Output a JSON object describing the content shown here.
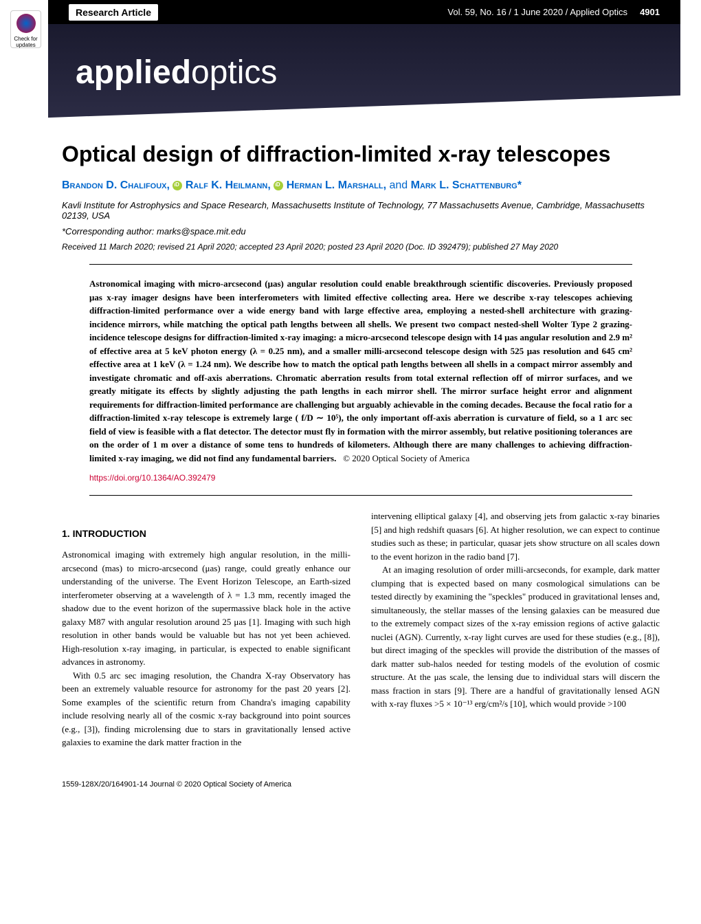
{
  "check_badge": "Check for updates",
  "header": {
    "research_article": "Research Article",
    "issue_info": "Vol. 59, No. 16 / 1 June 2020 / Applied Optics",
    "page_num": "4901"
  },
  "banner": {
    "bold": "applied",
    "light": "optics"
  },
  "title": "Optical design of diffraction-limited x-ray telescopes",
  "authors": {
    "a1": "Brandon D. Chalifoux,",
    "a2": "Ralf K. Heilmann,",
    "a3": "Herman L. Marshall,",
    "and": "and",
    "a4": "Mark L. Schattenburg*"
  },
  "affiliation": "Kavli Institute for Astrophysics and Space Research, Massachusetts Institute of Technology, 77 Massachusetts Avenue, Cambridge, Massachusetts 02139, USA",
  "corresponding": "*Corresponding author: marks@space.mit.edu",
  "received": "Received 11 March 2020; revised 21 April 2020; accepted 23 April 2020; posted 23 April 2020 (Doc. ID 392479); published 27 May 2020",
  "abstract": "Astronomical imaging with micro-arcsecond (μas) angular resolution could enable breakthrough scientific discoveries. Previously proposed μas x-ray imager designs have been interferometers with limited effective collecting area. Here we describe x-ray telescopes achieving diffraction-limited performance over a wide energy band with large effective area, employing a nested-shell architecture with grazing-incidence mirrors, while matching the optical path lengths between all shells. We present two compact nested-shell Wolter Type 2 grazing-incidence telescope designs for diffraction-limited x-ray imaging: a micro-arcsecond telescope design with 14 μas angular resolution and 2.9 m² of effective area at 5 keV photon energy (λ = 0.25 nm), and a smaller milli-arcsecond telescope design with 525 μas resolution and 645 cm² effective area at 1 keV (λ = 1.24 nm). We describe how to match the optical path lengths between all shells in a compact mirror assembly and investigate chromatic and off-axis aberrations. Chromatic aberration results from total external reflection off of mirror surfaces, and we greatly mitigate its effects by slightly adjusting the path lengths in each mirror shell. The mirror surface height error and alignment requirements for diffraction-limited performance are challenging but arguably achievable in the coming decades. Because the focal ratio for a diffraction-limited x-ray telescope is extremely large ( f/D ∼ 10⁵), the only important off-axis aberration is curvature of field, so a 1 arc sec field of view is feasible with a flat detector. The detector must fly in formation with the mirror assembly, but relative positioning tolerances are on the order of 1 m over a distance of some tens to hundreds of kilometers. Although there are many challenges to achieving diffraction-limited x-ray imaging, we did not find any fundamental barriers.",
  "copyright": "© 2020 Optical Society of America",
  "doi": "https://doi.org/10.1364/AO.392479",
  "section1_title": "1. INTRODUCTION",
  "col1": {
    "p1": "Astronomical imaging with extremely high angular resolution, in the milli-arcsecond (mas) to micro-arcsecond (μas) range, could greatly enhance our understanding of the universe. The Event Horizon Telescope, an Earth-sized interferometer observing at a wavelength of λ = 1.3 mm, recently imaged the shadow due to the event horizon of the supermassive black hole in the active galaxy M87 with angular resolution around 25 μas [1]. Imaging with such high resolution in other bands would be valuable but has not yet been achieved. High-resolution x-ray imaging, in particular, is expected to enable significant advances in astronomy.",
    "p2": "With 0.5 arc sec imaging resolution, the Chandra X-ray Observatory has been an extremely valuable resource for astronomy for the past 20 years [2]. Some examples of the scientific return from Chandra's imaging capability include resolving nearly all of the cosmic x-ray background into point sources (e.g., [3]), finding microlensing due to stars in gravitationally lensed active galaxies to examine the dark matter fraction in the"
  },
  "col2": {
    "p1": "intervening elliptical galaxy [4], and observing jets from galactic x-ray binaries [5] and high redshift quasars [6]. At higher resolution, we can expect to continue studies such as these; in particular, quasar jets show structure on all scales down to the event horizon in the radio band [7].",
    "p2": "At an imaging resolution of order milli-arcseconds, for example, dark matter clumping that is expected based on many cosmological simulations can be tested directly by examining the \"speckles\" produced in gravitational lenses and, simultaneously, the stellar masses of the lensing galaxies can be measured due to the extremely compact sizes of the x-ray emission regions of active galactic nuclei (AGN). Currently, x-ray light curves are used for these studies (e.g., [8]), but direct imaging of the speckles will provide the distribution of the masses of dark matter sub-halos needed for testing models of the evolution of cosmic structure. At the μas scale, the lensing due to individual stars will discern the mass fraction in stars [9]. There are a handful of gravitationally lensed AGN with x-ray fluxes >5 × 10⁻¹³ erg/cm²/s [10], which would provide >100"
  },
  "footer": {
    "left": "1559-128X/20/164901-14 Journal © 2020 Optical Society of America",
    "right": ""
  }
}
